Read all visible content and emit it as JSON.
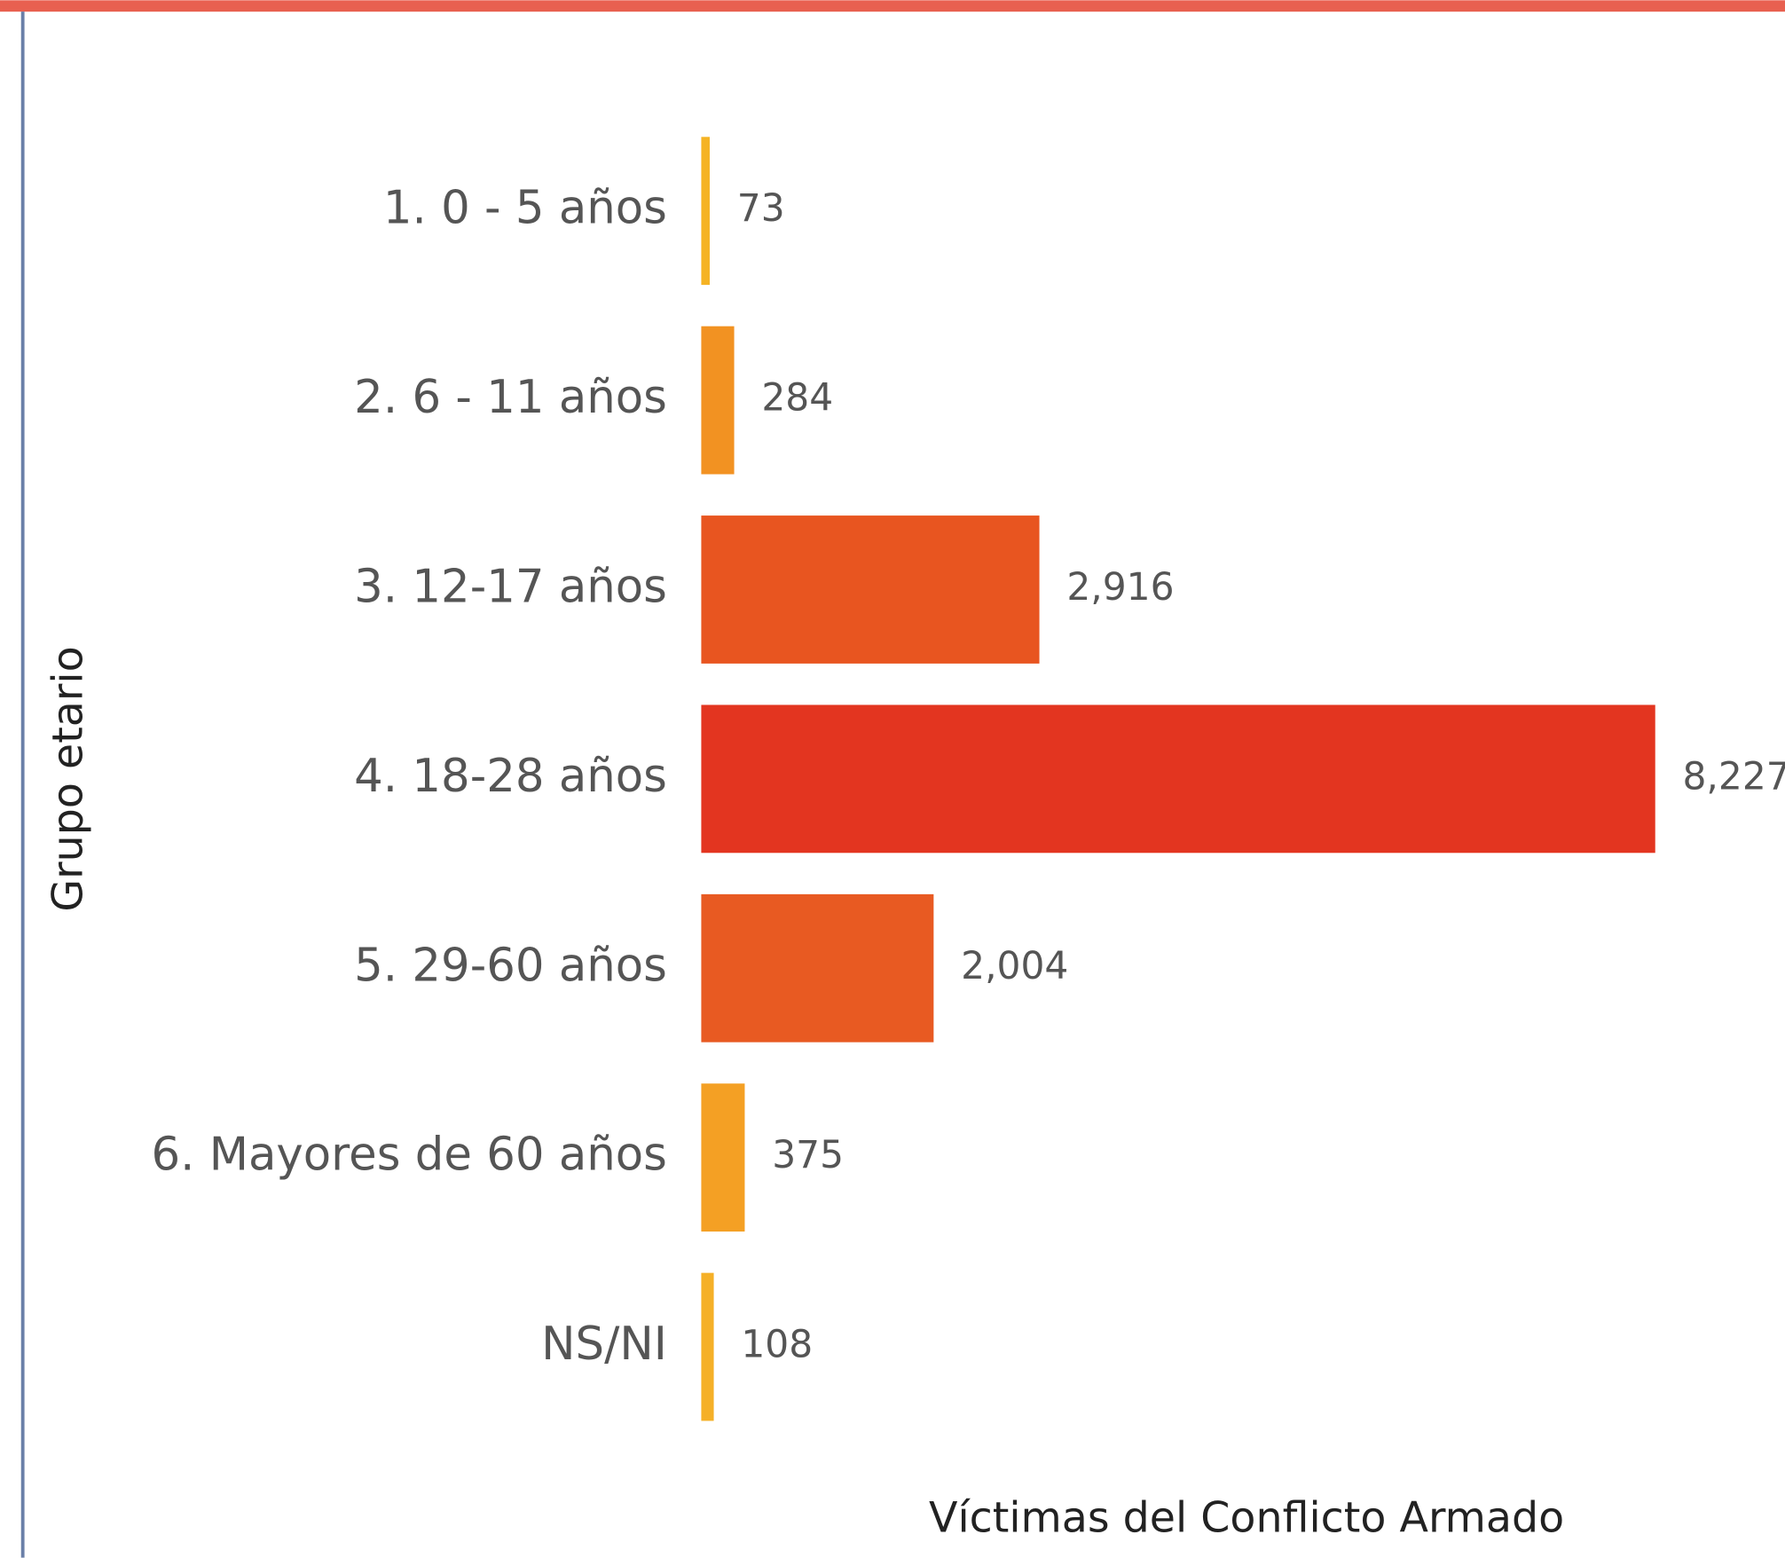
{
  "chart_data": {
    "type": "hbar",
    "categories": [
      "1. 0 - 5 años",
      "2. 6 - 11 años",
      "3. 12-17 años",
      "4. 18-28 años",
      "5. 29-60 años",
      "6. Mayores de 60 años",
      "NS/NI"
    ],
    "values": [
      73,
      284,
      2916,
      8227,
      2004,
      375,
      108
    ],
    "value_labels": [
      "73",
      "284",
      "2,916",
      "8,227",
      "2,004",
      "375",
      "108"
    ],
    "colors": [
      "#f5b324",
      "#f29222",
      "#e85520",
      "#e33520",
      "#e85a22",
      "#f4a024",
      "#f5b027"
    ],
    "y_label": "Grupo etario",
    "x_label": "Víctimas del Conflicto Armado"
  }
}
